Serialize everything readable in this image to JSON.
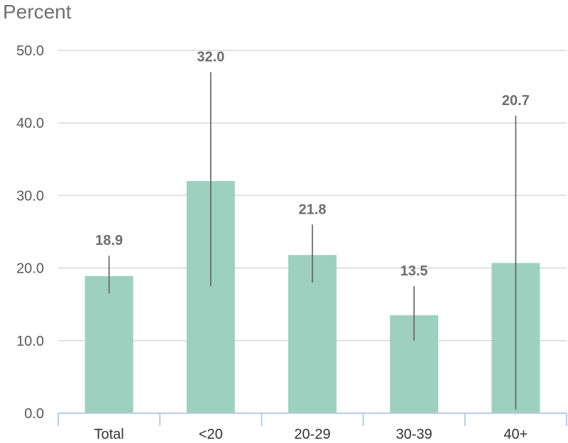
{
  "chart_data": {
    "type": "bar",
    "ylabel": "Percent",
    "ylim": [
      0,
      50
    ],
    "yticks": [
      "0.0",
      "10.0",
      "20.0",
      "30.0",
      "40.0",
      "50.0"
    ],
    "categories": [
      "Total",
      "<20",
      "20-29",
      "30-39",
      "40+"
    ],
    "values": [
      18.9,
      32.0,
      21.8,
      13.5,
      20.7
    ],
    "value_labels": [
      "18.9",
      "32.0",
      "21.8",
      "13.5",
      "20.7"
    ],
    "error_low": [
      16.5,
      17.5,
      18.0,
      10.0,
      0.5
    ],
    "error_high": [
      21.7,
      47.0,
      26.0,
      17.5,
      41.0
    ],
    "grid": true,
    "legend": "none",
    "colors": {
      "bar": "#9dd0bf",
      "grid": "#d9d9d9",
      "axis": "#b9cde3",
      "error": "#5f5f5f"
    }
  }
}
